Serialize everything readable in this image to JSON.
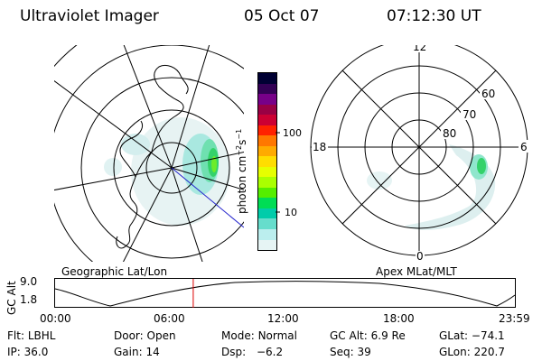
{
  "header": {
    "title": "Ultraviolet Imager",
    "date": "05 Oct 07",
    "time": "07:12:30 UT"
  },
  "colorbar": {
    "unit_label": "photon cm",
    "unit_exp1": "−2",
    "unit_mid": "s",
    "unit_exp2": "−1",
    "ticks": [
      "100",
      "10"
    ],
    "colors": [
      "#000033",
      "#330055",
      "#770088",
      "#990044",
      "#cc0033",
      "#ff2200",
      "#ff7700",
      "#ffaa00",
      "#ffdd00",
      "#e6ff00",
      "#aaff00",
      "#55ee00",
      "#00dd55",
      "#00ccaa",
      "#66ddcc",
      "#bbeeee",
      "#e6f4f4"
    ]
  },
  "left_map": {
    "caption": "Geographic Lat/Lon"
  },
  "right_map": {
    "caption": "Apex MLat/MLT",
    "mlt_labels": {
      "top": "12",
      "right": "6",
      "bottom": "0",
      "left": "18"
    },
    "lat_labels": [
      "60",
      "70",
      "80"
    ]
  },
  "timeline": {
    "y_label": "GC Alt",
    "y_ticks": [
      "9.0",
      "1.8"
    ],
    "x_ticks": [
      "00:00",
      "06:00",
      "12:00",
      "18:00",
      "23:59"
    ],
    "marker_time_hours": 7.21
  },
  "status": {
    "row1": [
      {
        "key": "Flt:",
        "value": "LBHL"
      },
      {
        "key": "Door:",
        "value": "Open"
      },
      {
        "key": "Mode:",
        "value": "Normal"
      },
      {
        "key": "GC Alt:",
        "value": "6.9 Re"
      },
      {
        "key": "GLat:",
        "value": "−74.1"
      }
    ],
    "row2": [
      {
        "key": "IP:",
        "value": "36.0"
      },
      {
        "key": "Gain:",
        "value": "14"
      },
      {
        "key": "Dsp:",
        "value": "−6.2"
      },
      {
        "key": "Seq:",
        "value": "39"
      },
      {
        "key": "GLon:",
        "value": "220.7"
      }
    ]
  }
}
